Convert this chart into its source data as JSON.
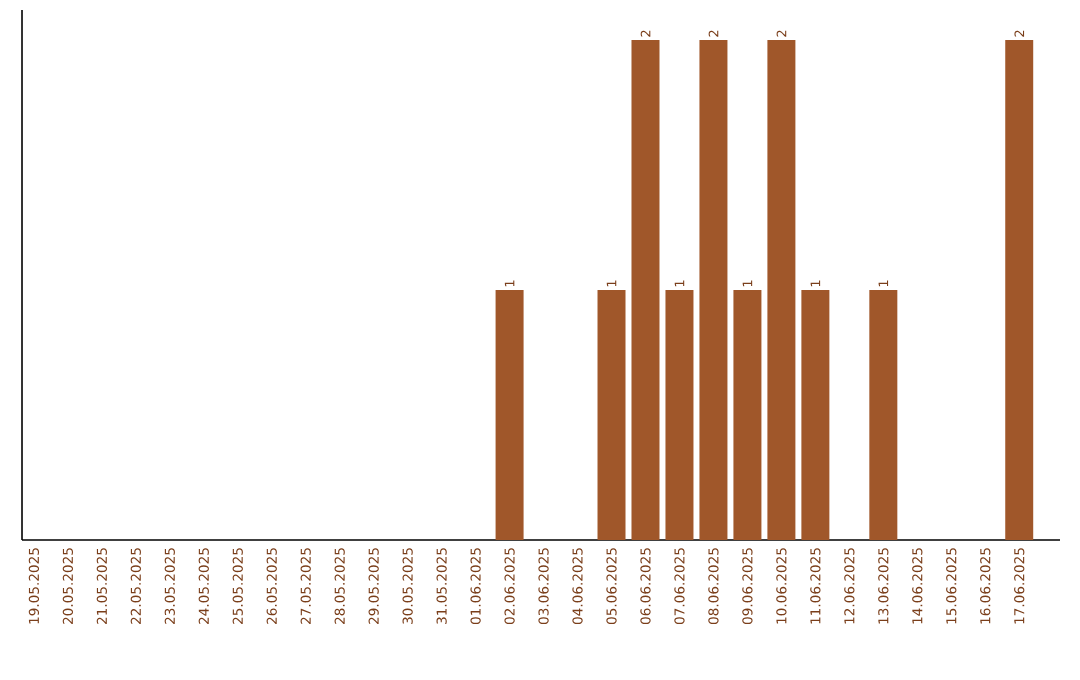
{
  "chart_data": {
    "type": "bar",
    "color": "#a0572a",
    "categories": [
      "19.05.2025",
      "20.05.2025",
      "21.05.2025",
      "22.05.2025",
      "23.05.2025",
      "24.05.2025",
      "25.05.2025",
      "26.05.2025",
      "27.05.2025",
      "28.05.2025",
      "29.05.2025",
      "30.05.2025",
      "31.05.2025",
      "01.06.2025",
      "02.06.2025",
      "03.06.2025",
      "04.06.2025",
      "05.06.2025",
      "06.06.2025",
      "07.06.2025",
      "08.06.2025",
      "09.06.2025",
      "10.06.2025",
      "11.06.2025",
      "12.06.2025",
      "13.06.2025",
      "14.06.2025",
      "15.06.2025",
      "16.06.2025",
      "17.06.2025"
    ],
    "values": [
      null,
      null,
      null,
      null,
      null,
      null,
      null,
      null,
      null,
      null,
      null,
      null,
      null,
      null,
      1,
      null,
      null,
      1,
      2,
      1,
      2,
      1,
      2,
      1,
      null,
      1,
      null,
      null,
      null,
      2
    ],
    "value_labels": [
      null,
      null,
      null,
      null,
      null,
      null,
      null,
      null,
      null,
      null,
      null,
      null,
      null,
      null,
      "1",
      null,
      null,
      "1",
      "2",
      "1",
      "2",
      "1",
      "2",
      "1",
      null,
      "1",
      null,
      null,
      null,
      "2"
    ],
    "ylim": [
      0,
      2.12
    ],
    "grid": false
  }
}
